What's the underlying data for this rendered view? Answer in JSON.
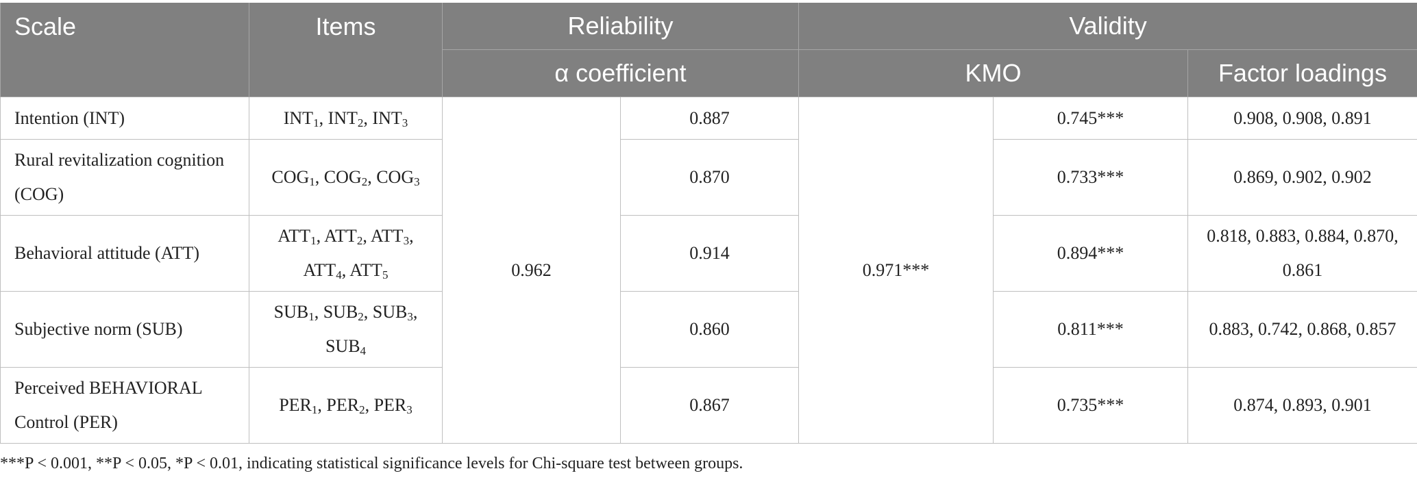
{
  "table": {
    "header": {
      "scale": "Scale",
      "items": "Items",
      "reliability": "Reliability",
      "validity": "Validity",
      "alpha": "α coefficient",
      "kmo": "KMO",
      "loadings": "Factor loadings"
    },
    "overall_alpha": "0.962",
    "overall_kmo": "0.971***",
    "rows": [
      {
        "scale": "Intention (INT)",
        "items": [
          [
            "INT",
            "1"
          ],
          [
            "INT",
            "2"
          ],
          [
            "INT",
            "3"
          ]
        ],
        "alpha": "0.887",
        "kmo": "0.745***",
        "loadings": "0.908, 0.908, 0.891"
      },
      {
        "scale": "Rural revitalization cognition (COG)",
        "items": [
          [
            "COG",
            "1"
          ],
          [
            "COG",
            "2"
          ],
          [
            "COG",
            "3"
          ]
        ],
        "alpha": "0.870",
        "kmo": "0.733***",
        "loadings": "0.869, 0.902, 0.902"
      },
      {
        "scale": "Behavioral attitude (ATT)",
        "items": [
          [
            "ATT",
            "1"
          ],
          [
            "ATT",
            "2"
          ],
          [
            "ATT",
            "3"
          ],
          [
            "ATT",
            "4"
          ],
          [
            "ATT",
            "5"
          ]
        ],
        "alpha": "0.914",
        "kmo": "0.894***",
        "loadings": "0.818, 0.883, 0.884, 0.870, 0.861"
      },
      {
        "scale": "Subjective norm (SUB)",
        "items": [
          [
            "SUB",
            "1"
          ],
          [
            "SUB",
            "2"
          ],
          [
            "SUB",
            "3"
          ],
          [
            "SUB",
            "4"
          ]
        ],
        "alpha": "0.860",
        "kmo": "0.811***",
        "loadings": "0.883, 0.742, 0.868, 0.857"
      },
      {
        "scale": "Perceived BEHAVIORAL Control (PER)",
        "items": [
          [
            "PER",
            "1"
          ],
          [
            "PER",
            "2"
          ],
          [
            "PER",
            "3"
          ]
        ],
        "alpha": "0.867",
        "kmo": "0.735***",
        "loadings": "0.874, 0.893, 0.901"
      }
    ]
  },
  "footnote": "***P < 0.001, **P < 0.05, *P < 0.01, indicating statistical significance levels for Chi-square test between groups."
}
